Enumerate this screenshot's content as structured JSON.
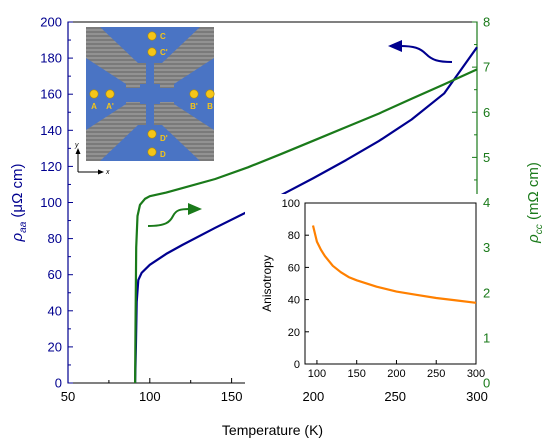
{
  "chart_data": [
    {
      "type": "line",
      "x": {
        "label": "Temperature (K)",
        "lim": [
          50,
          300
        ],
        "ticks": [
          50,
          100,
          150,
          200,
          250,
          300
        ]
      },
      "y_left": {
        "label_symbol": "ρ",
        "label_sub": "aa",
        "label_unit": " (μΩ cm)",
        "lim": [
          0,
          200
        ],
        "ticks": [
          0,
          20,
          40,
          60,
          80,
          100,
          120,
          140,
          160,
          180,
          200
        ],
        "color": "#00008f"
      },
      "y_right": {
        "label_symbol": "ρ",
        "label_sub": "cc",
        "label_unit": " (mΩ cm)",
        "lim": [
          0,
          8
        ],
        "ticks": [
          0,
          1,
          2,
          3,
          4,
          5,
          6,
          7,
          8
        ],
        "color": "#1a7a1a"
      },
      "grid": false,
      "series": [
        {
          "axis": "left",
          "color": "#00008f",
          "points": [
            [
              91,
              0
            ],
            [
              91.5,
              20
            ],
            [
              92,
              45
            ],
            [
              93,
              57
            ],
            [
              95,
              61
            ],
            [
              100,
              65.5
            ],
            [
              110,
              71.5
            ],
            [
              120,
              76.5
            ],
            [
              140,
              86
            ],
            [
              160,
              95
            ],
            [
              180,
              104
            ],
            [
              200,
              113.5
            ],
            [
              220,
              123.5
            ],
            [
              240,
              134
            ],
            [
              260,
              146
            ],
            [
              280,
              160.5
            ],
            [
              300,
              186
            ]
          ]
        },
        {
          "axis": "right",
          "color": "#1a7a1a",
          "points": [
            [
              91,
              0
            ],
            [
              91.3,
              1.5
            ],
            [
              91.7,
              3
            ],
            [
              92.5,
              3.7
            ],
            [
              94,
              3.95
            ],
            [
              97,
              4.08
            ],
            [
              100,
              4.14
            ],
            [
              110,
              4.22
            ],
            [
              120,
              4.32
            ],
            [
              140,
              4.52
            ],
            [
              160,
              4.78
            ],
            [
              180,
              5.07
            ],
            [
              200,
              5.37
            ],
            [
              220,
              5.67
            ],
            [
              240,
              5.97
            ],
            [
              260,
              6.3
            ],
            [
              280,
              6.62
            ],
            [
              300,
              6.95
            ]
          ]
        }
      ]
    },
    {
      "type": "line",
      "inset": true,
      "x": {
        "lim": [
          85,
          300
        ],
        "ticks": [
          100,
          150,
          200,
          250,
          300
        ]
      },
      "y": {
        "label": "Anisotropy",
        "lim": [
          0,
          100
        ],
        "ticks": [
          0,
          20,
          40,
          60,
          80,
          100
        ]
      },
      "series": [
        {
          "color": "#ff8000",
          "points": [
            [
              95,
              86
            ],
            [
              100,
              76
            ],
            [
              105,
              71
            ],
            [
              110,
              67
            ],
            [
              120,
              61
            ],
            [
              130,
              57
            ],
            [
              140,
              54
            ],
            [
              150,
              52
            ],
            [
              175,
              48
            ],
            [
              200,
              45
            ],
            [
              225,
              43
            ],
            [
              250,
              41
            ],
            [
              275,
              39.5
            ],
            [
              300,
              38
            ]
          ]
        }
      ]
    }
  ],
  "device_image": {
    "contact_labels": [
      "C",
      "C'",
      "A",
      "A'",
      "B'",
      "B",
      "D'",
      "D"
    ],
    "axes_labels": {
      "x": "x",
      "y": "y"
    },
    "colors": {
      "substrate": "#7a7a7a",
      "stripes": "#9a9a9a",
      "contact_pad": "#4a74c4",
      "dot": "#f5c518",
      "label": "#f5c518"
    }
  }
}
